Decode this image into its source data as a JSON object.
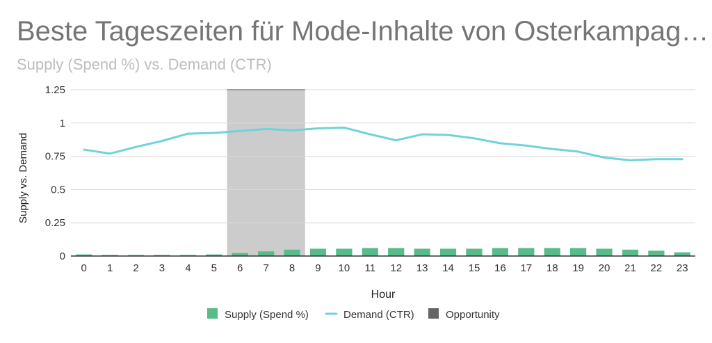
{
  "chart_data": {
    "type": "bar",
    "title": "Beste Tageszeiten für Mode-Inhalte von Osterkampag…",
    "subtitle": "Supply (Spend %) vs. Demand (CTR)",
    "xlabel": "Hour",
    "ylabel": "Supply vs. Demand",
    "ylim": [
      0,
      1.25
    ],
    "yticks": [
      "0",
      "0.25",
      "0.5",
      "0.75",
      "1",
      "1.25"
    ],
    "categories": [
      "0",
      "1",
      "2",
      "3",
      "4",
      "5",
      "6",
      "7",
      "8",
      "9",
      "10",
      "11",
      "12",
      "13",
      "14",
      "15",
      "16",
      "17",
      "18",
      "19",
      "20",
      "21",
      "22",
      "23"
    ],
    "series": [
      {
        "name": "Supply (Spend %)",
        "type": "bar",
        "color": "#57bb8a",
        "values": [
          0.012,
          0.008,
          0.008,
          0.008,
          0.008,
          0.012,
          0.022,
          0.035,
          0.048,
          0.055,
          0.055,
          0.06,
          0.06,
          0.055,
          0.055,
          0.055,
          0.06,
          0.06,
          0.06,
          0.06,
          0.055,
          0.048,
          0.04,
          0.028
        ]
      },
      {
        "name": "Demand (CTR)",
        "type": "line",
        "color": "#6fd3d9",
        "values": [
          0.8,
          0.77,
          0.82,
          0.865,
          0.92,
          0.925,
          0.94,
          0.955,
          0.945,
          0.96,
          0.965,
          0.915,
          0.87,
          0.915,
          0.91,
          0.885,
          0.848,
          0.83,
          0.805,
          0.785,
          0.74,
          0.72,
          0.728,
          0.728
        ]
      },
      {
        "name": "Opportunity",
        "type": "band",
        "color": "#666666",
        "range": [
          "6",
          "8"
        ],
        "value": 1.25
      }
    ],
    "legend": {
      "placement": "bottom",
      "items": [
        {
          "label": "Supply (Spend %)",
          "color": "#57bb8a",
          "shape": "square"
        },
        {
          "label": "Demand (CTR)",
          "color": "#6fd3d9",
          "shape": "line"
        },
        {
          "label": "Opportunity",
          "color": "#666666",
          "shape": "square"
        }
      ]
    },
    "grid": true
  }
}
